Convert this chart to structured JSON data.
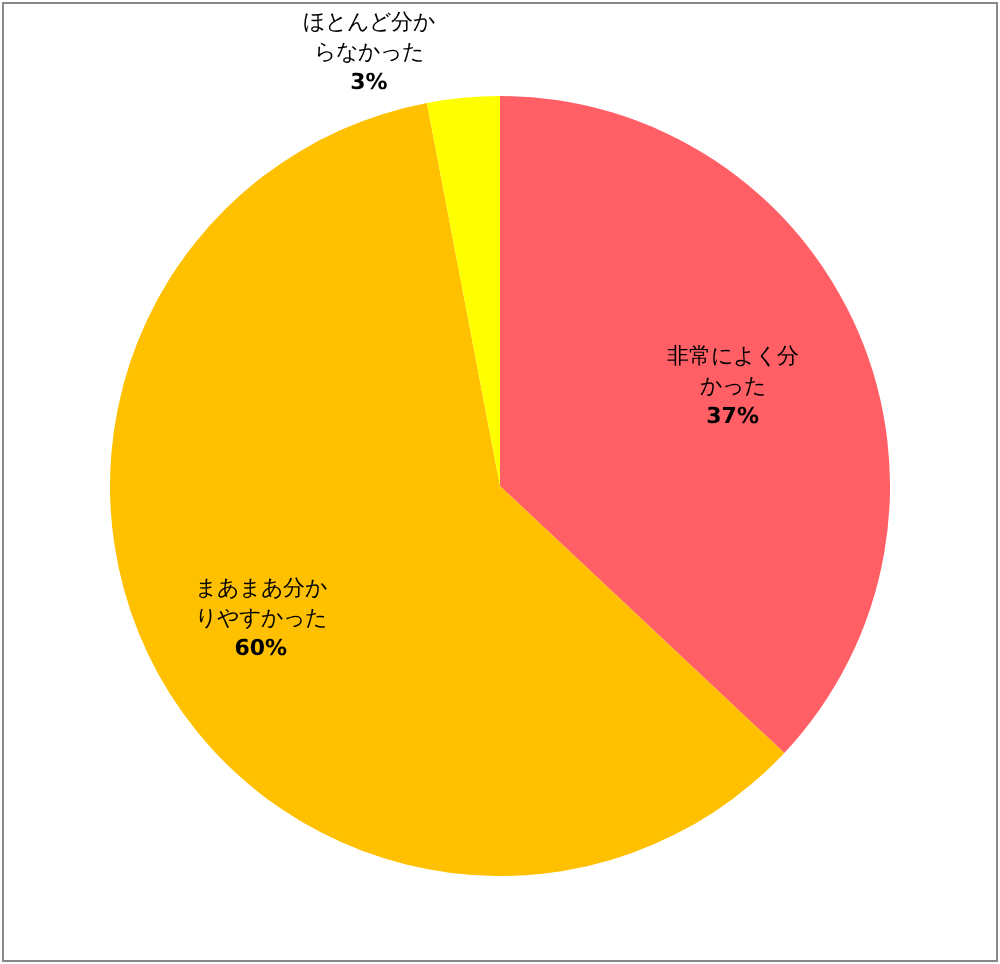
{
  "chart_data": {
    "type": "pie",
    "categories": [
      "非常によく分かった",
      "まあまあ分かりやすかった",
      "ほとんど分からなかった"
    ],
    "values": [
      37,
      60,
      3
    ],
    "colors": [
      "#ff5f65",
      "#ffc000",
      "#ffff00"
    ],
    "value_labels": [
      "37%",
      "60%",
      "3%"
    ]
  }
}
